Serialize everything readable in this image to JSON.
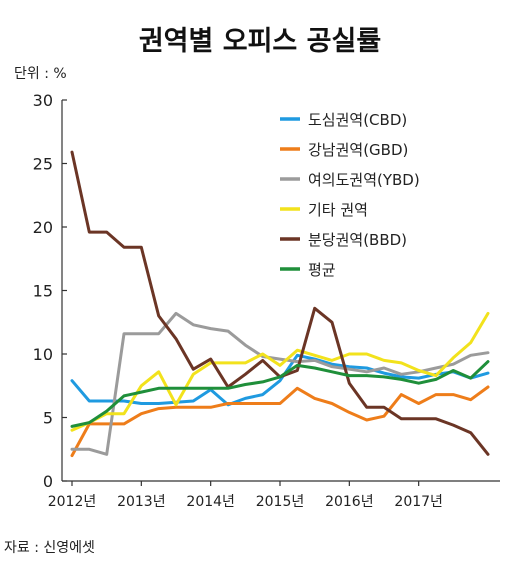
{
  "chart_data": {
    "type": "line",
    "title": "권역별 오피스 공실률",
    "unit_label": "단위 : %",
    "source": "자료 : 신영에셋",
    "ylim": [
      0,
      30
    ],
    "yticks": [
      "0",
      "5",
      "10",
      "15",
      "20",
      "25",
      "30"
    ],
    "x_tick_labels": [
      "2012년",
      "2013년",
      "2014년",
      "2015년",
      "2016년",
      "2017년"
    ],
    "x_tick_positions": [
      0,
      4,
      8,
      12,
      16,
      20
    ],
    "grid": false,
    "legend_position": "top-right",
    "series": [
      {
        "name": "도심권역(CBD)",
        "color": "#1f9ae0",
        "values": [
          7.9,
          6.3,
          6.3,
          6.3,
          6.1,
          6.1,
          6.2,
          6.3,
          7.2,
          6.0,
          6.5,
          6.8,
          7.9,
          9.9,
          9.6,
          9.2,
          9.0,
          8.9,
          8.5,
          8.2,
          8.1,
          8.4,
          8.6,
          8.1,
          8.5
        ]
      },
      {
        "name": "강남권역(GBD)",
        "color": "#ee7d1a",
        "values": [
          2.0,
          4.5,
          4.5,
          4.5,
          5.3,
          5.7,
          5.8,
          5.8,
          5.8,
          6.1,
          6.1,
          6.1,
          6.1,
          7.3,
          6.5,
          6.1,
          5.4,
          4.8,
          5.1,
          6.8,
          6.1,
          6.8,
          6.8,
          6.4,
          7.4
        ]
      },
      {
        "name": "여의도권역(YBD)",
        "color": "#9b9b9b",
        "values": [
          2.5,
          2.5,
          2.1,
          11.6,
          11.6,
          11.6,
          13.2,
          12.3,
          12.0,
          11.8,
          10.7,
          9.8,
          9.6,
          9.4,
          9.5,
          9.0,
          8.8,
          8.6,
          8.9,
          8.4,
          8.6,
          8.9,
          9.2,
          9.9,
          10.1
        ]
      },
      {
        "name": "기타 권역",
        "color": "#f2e21c",
        "values": [
          4.0,
          4.6,
          5.3,
          5.3,
          7.5,
          8.6,
          6.0,
          8.4,
          9.3,
          9.3,
          9.3,
          10.0,
          9.1,
          10.3,
          9.9,
          9.5,
          10.0,
          10.0,
          9.5,
          9.3,
          8.7,
          8.3,
          9.7,
          10.9,
          13.2
        ]
      },
      {
        "name": "분당권역(BBD)",
        "color": "#6b3525",
        "values": [
          25.9,
          19.6,
          19.6,
          18.4,
          18.4,
          13.0,
          11.2,
          8.8,
          9.6,
          7.4,
          8.4,
          9.5,
          8.2,
          8.7,
          13.6,
          12.5,
          7.7,
          5.8,
          5.8,
          4.9,
          4.9,
          4.9,
          4.4,
          3.8,
          2.1
        ]
      },
      {
        "name": "평균",
        "color": "#1f8f3a",
        "values": [
          4.3,
          4.6,
          5.5,
          6.7,
          7.0,
          7.3,
          7.3,
          7.3,
          7.3,
          7.3,
          7.6,
          7.8,
          8.2,
          9.1,
          8.9,
          8.6,
          8.3,
          8.3,
          8.2,
          8.0,
          7.7,
          8.0,
          8.7,
          8.1,
          9.4
        ]
      }
    ]
  }
}
